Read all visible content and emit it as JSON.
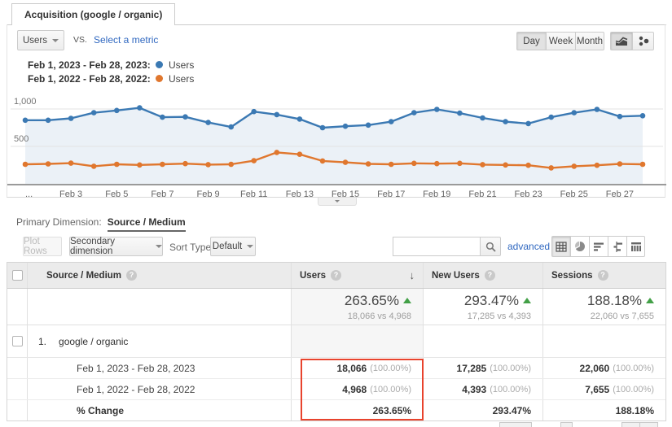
{
  "tab": {
    "title": "Acquisition (google / organic)"
  },
  "toolbar": {
    "metric_selector": "Users",
    "vs_label": "VS.",
    "select_metric_label": "Select a metric",
    "granularity": {
      "day": "Day",
      "week": "Week",
      "month": "Month",
      "active": "Day"
    }
  },
  "legend": [
    {
      "label": "Feb 1, 2023 - Feb 28, 2023:",
      "series": "Users",
      "color": "#3b79b3"
    },
    {
      "label": "Feb 1, 2022 - Feb 28, 2022:",
      "series": "Users",
      "color": "#e0772e"
    }
  ],
  "chart_data": {
    "type": "line",
    "x": [
      "Feb 1",
      "Feb 2",
      "Feb 3",
      "Feb 4",
      "Feb 5",
      "Feb 6",
      "Feb 7",
      "Feb 8",
      "Feb 9",
      "Feb 10",
      "Feb 11",
      "Feb 12",
      "Feb 13",
      "Feb 14",
      "Feb 15",
      "Feb 16",
      "Feb 17",
      "Feb 18",
      "Feb 19",
      "Feb 20",
      "Feb 21",
      "Feb 22",
      "Feb 23",
      "Feb 24",
      "Feb 25",
      "Feb 26",
      "Feb 27",
      "Feb 28"
    ],
    "x_tick_labels": [
      "...",
      "Feb 3",
      "Feb 5",
      "Feb 7",
      "Feb 9",
      "Feb 11",
      "Feb 13",
      "Feb 15",
      "Feb 17",
      "Feb 19",
      "Feb 21",
      "Feb 23",
      "Feb 25",
      "Feb 27"
    ],
    "y_ticks": [
      {
        "label": "500",
        "value": 500
      },
      {
        "label": "1,000",
        "value": 1000
      }
    ],
    "ylim": [
      0,
      1240
    ],
    "grid": true,
    "legend_position": "top-left",
    "series": [
      {
        "name": "Users (Feb 1, 2023 - Feb 28, 2023)",
        "color": "#3b79b3",
        "values": [
          850,
          850,
          875,
          950,
          980,
          1015,
          890,
          895,
          820,
          760,
          965,
          925,
          865,
          750,
          770,
          785,
          830,
          950,
          995,
          945,
          880,
          830,
          805,
          890,
          950,
          995,
          900,
          910
        ]
      },
      {
        "name": "Users (Feb 1, 2022 - Feb 28, 2022)",
        "color": "#e0772e",
        "values": [
          261,
          266,
          276,
          235,
          261,
          252,
          261,
          270,
          257,
          261,
          309,
          420,
          395,
          305,
          287,
          266,
          261,
          274,
          270,
          274,
          257,
          252,
          248,
          213,
          235,
          248,
          266,
          261
        ]
      }
    ],
    "area_fill": "rgba(59,121,179,0.10)"
  },
  "primary_dimension": {
    "label": "Primary Dimension:",
    "value": "Source / Medium"
  },
  "table_toolbar": {
    "plot_rows": "Plot Rows",
    "secondary_dimension": "Secondary dimension",
    "sort_type_label": "Sort Type:",
    "sort_type_value": "Default",
    "search_value": "",
    "advanced_label": "advanced"
  },
  "table": {
    "columns": {
      "dimension": "Source / Medium",
      "users": "Users",
      "new_users": "New Users",
      "sessions": "Sessions"
    },
    "summary": [
      {
        "pct": "263.65%",
        "vs": "18,066 vs 4,968"
      },
      {
        "pct": "293.47%",
        "vs": "17,285 vs 4,393"
      },
      {
        "pct": "188.18%",
        "vs": "22,060 vs 7,655"
      }
    ],
    "rows": [
      {
        "index": "1.",
        "name": "google / organic"
      },
      {
        "name": "Feb 1, 2023 - Feb 28, 2023",
        "cells": [
          {
            "value": "18,066",
            "share": "(100.00%)"
          },
          {
            "value": "17,285",
            "share": "(100.00%)"
          },
          {
            "value": "22,060",
            "share": "(100.00%)"
          }
        ]
      },
      {
        "name": "Feb 1, 2022 - Feb 28, 2022",
        "cells": [
          {
            "value": "4,968",
            "share": "(100.00%)"
          },
          {
            "value": "4,393",
            "share": "(100.00%)"
          },
          {
            "value": "7,655",
            "share": "(100.00%)"
          }
        ]
      },
      {
        "name": "% Change",
        "cells": [
          {
            "value": "263.65%"
          },
          {
            "value": "293.47%"
          },
          {
            "value": "188.18%"
          }
        ]
      }
    ]
  },
  "icons": {
    "help": "?",
    "sort_desc": "↓"
  },
  "colors": {
    "series_2023": "#3b79b3",
    "series_2022": "#e0772e",
    "link": "#3068c0",
    "increase_green": "#43a047",
    "annotation_red": "#e8432d"
  }
}
